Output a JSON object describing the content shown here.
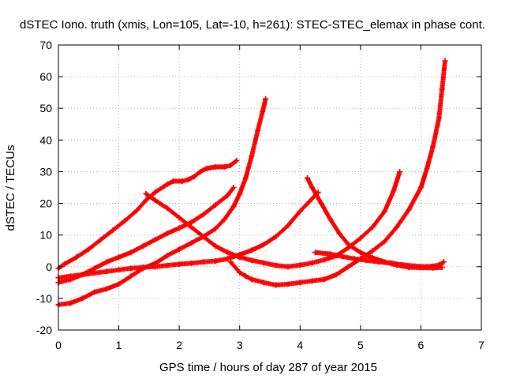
{
  "chart_data": {
    "type": "scatter",
    "title": "dSTEC Iono. truth (xmis, Lon=105, Lat=-10, h=261): STEC-STEC_elemax in phase cont.",
    "xlabel": "GPS time / hours of day 287 of year 2015",
    "ylabel": "dSTEC  / TECUs",
    "xlim": [
      0,
      7
    ],
    "ylim": [
      -20,
      70
    ],
    "x_ticks": [
      0,
      1,
      2,
      3,
      4,
      5,
      6,
      7
    ],
    "y_ticks": [
      -20,
      -10,
      0,
      10,
      20,
      30,
      40,
      50,
      60,
      70
    ],
    "grid": true,
    "marker": "+",
    "series_color": "#ff0000",
    "series": [
      {
        "points": [
          [
            0.0,
            -0.5
          ],
          [
            0.1,
            0.8
          ],
          [
            0.3,
            3
          ],
          [
            0.5,
            5.5
          ],
          [
            0.7,
            8.5
          ],
          [
            0.9,
            11.5
          ],
          [
            1.1,
            14.5
          ],
          [
            1.3,
            17.8
          ],
          [
            1.45,
            21
          ],
          [
            1.6,
            23.5
          ],
          [
            1.8,
            26
          ],
          [
            1.9,
            27
          ],
          [
            2.05,
            27
          ],
          [
            2.15,
            27.5
          ],
          [
            2.25,
            28.5
          ],
          [
            2.35,
            30
          ],
          [
            2.45,
            31
          ],
          [
            2.6,
            31.5
          ],
          [
            2.75,
            31.5
          ],
          [
            2.85,
            32
          ],
          [
            2.95,
            33.5
          ]
        ]
      },
      {
        "points": [
          [
            0.0,
            -5
          ],
          [
            0.2,
            -4
          ],
          [
            0.4,
            -2.5
          ],
          [
            0.6,
            -0.5
          ],
          [
            0.8,
            1.5
          ],
          [
            1.0,
            3
          ],
          [
            1.2,
            4.5
          ],
          [
            1.4,
            6.5
          ],
          [
            1.6,
            8.5
          ],
          [
            1.8,
            10.5
          ],
          [
            2.0,
            12.2
          ],
          [
            2.2,
            14
          ],
          [
            2.4,
            16.5
          ],
          [
            2.6,
            19.5
          ],
          [
            2.8,
            22.5
          ],
          [
            2.9,
            25
          ]
        ]
      },
      {
        "points": [
          [
            0.0,
            -12
          ],
          [
            0.2,
            -11.5
          ],
          [
            0.4,
            -10
          ],
          [
            0.6,
            -8
          ],
          [
            0.8,
            -7
          ],
          [
            1.0,
            -5.5
          ],
          [
            1.2,
            -3
          ],
          [
            1.4,
            -0.5
          ],
          [
            1.6,
            1
          ],
          [
            1.8,
            3.5
          ],
          [
            2.0,
            5.5
          ],
          [
            2.2,
            7.5
          ],
          [
            2.4,
            9.5
          ],
          [
            2.6,
            12
          ],
          [
            2.75,
            15
          ],
          [
            2.9,
            19
          ],
          [
            3.0,
            23
          ],
          [
            3.1,
            28
          ],
          [
            3.2,
            35
          ],
          [
            3.3,
            43
          ],
          [
            3.38,
            49
          ],
          [
            3.43,
            53
          ]
        ]
      },
      {
        "points": [
          [
            0.0,
            -3.5
          ],
          [
            0.2,
            -3
          ],
          [
            0.4,
            -2.5
          ],
          [
            0.6,
            -2
          ],
          [
            0.8,
            -1.5
          ],
          [
            1.0,
            -1
          ],
          [
            1.2,
            -0.5
          ],
          [
            1.4,
            -0.2
          ],
          [
            1.6,
            0
          ],
          [
            1.8,
            0.4
          ],
          [
            2.0,
            0.8
          ],
          [
            2.2,
            1.1
          ],
          [
            2.4,
            1.5
          ],
          [
            2.6,
            1.8
          ],
          [
            2.8,
            2.5
          ],
          [
            3.0,
            3.8
          ],
          [
            3.2,
            5.2
          ],
          [
            3.4,
            7
          ],
          [
            3.6,
            9.5
          ],
          [
            3.8,
            13
          ],
          [
            4.0,
            17.5
          ],
          [
            4.15,
            20.5
          ],
          [
            4.3,
            23.5
          ]
        ]
      },
      {
        "points": [
          [
            1.45,
            23
          ],
          [
            1.6,
            21
          ],
          [
            1.8,
            18.5
          ],
          [
            2.0,
            15.5
          ],
          [
            2.2,
            12.5
          ],
          [
            2.4,
            9.5
          ],
          [
            2.6,
            6.5
          ],
          [
            2.8,
            4.5
          ],
          [
            3.0,
            3
          ],
          [
            3.2,
            2
          ],
          [
            3.4,
            1.2
          ],
          [
            3.6,
            0.4
          ],
          [
            3.8,
            0
          ],
          [
            4.0,
            0.5
          ],
          [
            4.2,
            1.2
          ],
          [
            4.4,
            2.2
          ],
          [
            4.6,
            3.5
          ],
          [
            4.8,
            6
          ],
          [
            5.0,
            9
          ],
          [
            5.2,
            12.5
          ],
          [
            5.4,
            17.5
          ],
          [
            5.55,
            24
          ],
          [
            5.65,
            30
          ]
        ]
      },
      {
        "points": [
          [
            2.85,
            1.5
          ],
          [
            3.0,
            -1.8
          ],
          [
            3.1,
            -3
          ],
          [
            3.2,
            -4
          ],
          [
            3.4,
            -5
          ],
          [
            3.6,
            -5.8
          ],
          [
            3.8,
            -5.5
          ],
          [
            4.0,
            -5
          ],
          [
            4.2,
            -4.5
          ],
          [
            4.4,
            -4
          ],
          [
            4.6,
            -2.5
          ],
          [
            4.8,
            0
          ],
          [
            5.0,
            2.5
          ],
          [
            5.2,
            5
          ],
          [
            5.4,
            8
          ],
          [
            5.6,
            12.5
          ],
          [
            5.8,
            18
          ],
          [
            6.0,
            25
          ],
          [
            6.1,
            31
          ],
          [
            6.2,
            38
          ],
          [
            6.3,
            47
          ],
          [
            6.35,
            56
          ],
          [
            6.4,
            65
          ]
        ]
      },
      {
        "points": [
          [
            4.12,
            28
          ],
          [
            4.2,
            25
          ],
          [
            4.35,
            20
          ],
          [
            4.5,
            15
          ],
          [
            4.65,
            10.5
          ],
          [
            4.8,
            7
          ],
          [
            5.0,
            4.5
          ],
          [
            5.2,
            2.8
          ],
          [
            5.4,
            1.5
          ],
          [
            5.6,
            0.5
          ],
          [
            5.8,
            -0.2
          ],
          [
            6.0,
            -0.3
          ],
          [
            6.2,
            -0.4
          ],
          [
            6.35,
            -0.2
          ]
        ]
      },
      {
        "points": [
          [
            4.25,
            4.5
          ],
          [
            4.5,
            4
          ],
          [
            4.7,
            3.2
          ],
          [
            4.9,
            2.5
          ],
          [
            5.1,
            2
          ],
          [
            5.3,
            1.5
          ],
          [
            5.5,
            1.2
          ],
          [
            5.7,
            0.6
          ],
          [
            5.9,
            0.2
          ],
          [
            6.1,
            0
          ],
          [
            6.3,
            0.5
          ],
          [
            6.38,
            1.5
          ]
        ]
      }
    ]
  }
}
